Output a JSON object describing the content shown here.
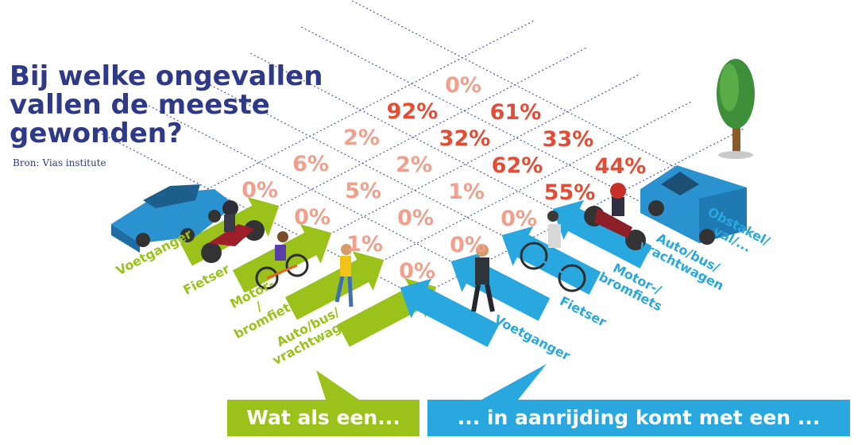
{
  "title_lines": [
    "Bij welke ongevallen",
    "vallen de meeste",
    "gewonden?"
  ],
  "source": "Bron: Vias institute",
  "colors": {
    "title": "#2e3a87",
    "victim": "#9bc21a",
    "other": "#29a8e0",
    "value_high": "#e34d36",
    "value_low": "#f0a08c",
    "grid": "#3d4a9a"
  },
  "icons": [
    "car-icon",
    "motorbike-icon",
    "cyclist-icon",
    "pedestrian-icon",
    "pedestrian-icon",
    "cyclist-icon",
    "motorbike-icon",
    "van-icon",
    "tree-icon"
  ],
  "banners": {
    "victim": "Wat als een...",
    "other": "... in aanrijding komt met een ..."
  },
  "chart_data": {
    "type": "table",
    "victim_categories": [
      "Auto/bus/ vrachtwagen",
      "Motor- / bromfiets",
      "Fietser",
      "Voetganger"
    ],
    "other_party_categories": [
      "Voetganger",
      "Fietser",
      "Motor-/ bromfiets",
      "Auto/bus/ vrachtwagen",
      "Obstakel/ val/..."
    ],
    "values": [
      {
        "victim": "Auto/bus/ vrachtwagen",
        "other": "Voetganger",
        "value": "0%"
      },
      {
        "victim": "Auto/bus/ vrachtwagen",
        "other": "Fietser",
        "value": "0%"
      },
      {
        "victim": "Auto/bus/ vrachtwagen",
        "other": "Motor-/ bromfiets",
        "value": "0%"
      },
      {
        "victim": "Auto/bus/ vrachtwagen",
        "other": "Auto/bus/ vrachtwagen",
        "value": "55%"
      },
      {
        "victim": "Auto/bus/ vrachtwagen",
        "other": "Obstakel/ val/...",
        "value": "44%"
      },
      {
        "victim": "Motor- / bromfiets",
        "other": "Voetganger",
        "value": "1%"
      },
      {
        "victim": "Motor- / bromfiets",
        "other": "Fietser",
        "value": "0%"
      },
      {
        "victim": "Motor- / bromfiets",
        "other": "Motor-/ bromfiets",
        "value": "1%"
      },
      {
        "victim": "Motor- / bromfiets",
        "other": "Auto/bus/ vrachtwagen",
        "value": "62%"
      },
      {
        "victim": "Motor- / bromfiets",
        "other": "Obstakel/ val/...",
        "value": "33%"
      },
      {
        "victim": "Fietser",
        "other": "Voetganger",
        "value": "0%"
      },
      {
        "victim": "Fietser",
        "other": "Fietser",
        "value": "5%"
      },
      {
        "victim": "Fietser",
        "other": "Motor-/ bromfiets",
        "value": "2%"
      },
      {
        "victim": "Fietser",
        "other": "Auto/bus/ vrachtwagen",
        "value": "32%"
      },
      {
        "victim": "Fietser",
        "other": "Obstakel/ val/...",
        "value": "61%"
      },
      {
        "victim": "Voetganger",
        "other": "Voetganger",
        "value": "0%"
      },
      {
        "victim": "Voetganger",
        "other": "Fietser",
        "value": "6%"
      },
      {
        "victim": "Voetganger",
        "other": "Motor-/ bromfiets",
        "value": "2%"
      },
      {
        "victim": "Voetganger",
        "other": "Auto/bus/ vrachtwagen",
        "value": "92%"
      },
      {
        "victim": "Voetganger",
        "other": "Obstakel/ val/...",
        "value": "0%"
      }
    ]
  }
}
